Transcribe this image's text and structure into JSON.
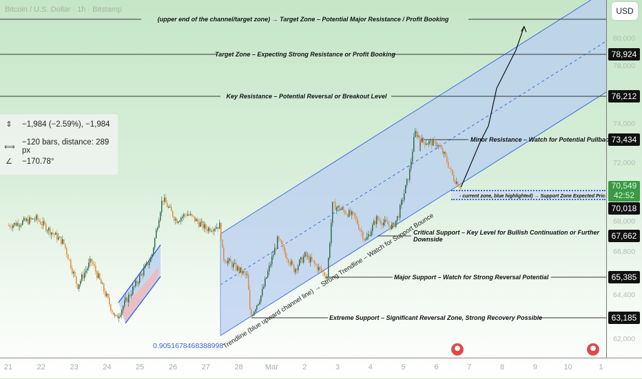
{
  "header": {
    "title": "Bitcoin / U.S. Dollar · 1h · Bitstamp",
    "currency_button": "USD"
  },
  "measure_tool": {
    "price_change": "−1,984 (−2.59%), −1,984",
    "bars_distance": "−120 bars, distance: 289 px",
    "angle": "−170.78°",
    "icons": [
      "price-range-icon",
      "bar-range-icon",
      "angle-icon"
    ]
  },
  "price_axis": {
    "ticks": [
      "80,000",
      "78,000",
      "74,000",
      "72,000",
      "68,000",
      "66,800",
      "64,400",
      "62,000"
    ],
    "labels": {
      "l78924": "78,924",
      "l76212": "76,212",
      "l73434": "73,434",
      "current_price": "70,549",
      "countdown": "42:52",
      "l70018": "70,018",
      "l67662": "67,662",
      "l65385": "65,385",
      "l63185": "63,185"
    }
  },
  "time_axis": [
    "21",
    "22",
    "23",
    "24",
    "25",
    "26",
    "27",
    "28",
    "Mar",
    "2",
    "3",
    "4",
    "5",
    "6",
    "7",
    "8",
    "9",
    "10",
    "1"
  ],
  "annotations": {
    "top": "(upper end of the channel/target zone) → Target Zone – Potential Major Resistance / Profit Booking",
    "target": "Target Zone – Expecting Strong Resistance or Profit Booking",
    "key_resistance": "Key Resistance – Potential Reversal or Breakout Level",
    "minor_resistance": "Minor Resistance – Watch for Potential Pullback",
    "support_zone": "- current zone, blue highlighted) → Support Zone  Expected Price Bounce or",
    "critical_support": "Critical Support – Key Level for Bullish Continuation or Further Downside",
    "major_support": "Major Support – Watch for Strong Reversal Potential",
    "extreme_support": "Extreme Support – Significant Reversal Zone, Strong Recovery Possible",
    "trendline": "Trendline (blue upward channel line) → Strong Trendline – Watch for Support Bounce",
    "fib_value": "0.9051678468388998"
  },
  "colors": {
    "up": "#2f6b4a",
    "down": "#e08a3c",
    "channel": "#3b6fe0",
    "channel_fill": "#b9cff0",
    "background": "#c6e6c8"
  },
  "chart_data": {
    "type": "candlestick",
    "timeframe": "1h",
    "price_path": [
      [
        "Feb 21 00",
        68300
      ],
      [
        "Feb 21 20",
        68700
      ],
      [
        "Feb 22 16",
        67300
      ],
      [
        "Feb 23 02",
        64900
      ],
      [
        "Feb 23 12",
        66300
      ],
      [
        "Feb 24 06",
        63100
      ],
      [
        "Feb 25 08",
        66500
      ],
      [
        "Feb 25 16",
        69900
      ],
      [
        "Feb 26 02",
        68600
      ],
      [
        "Feb 26 10",
        69000
      ],
      [
        "Feb 27 00",
        68100
      ],
      [
        "Feb 27 10",
        68300
      ],
      [
        "Feb 27 12",
        66500
      ],
      [
        "Feb 28 06",
        65400
      ],
      [
        "Feb 28 08",
        63200
      ],
      [
        "Feb 28 16",
        64400
      ],
      [
        "Mar 01 04",
        67500
      ],
      [
        "Mar 01 16",
        65800
      ],
      [
        "Mar 02 00",
        66600
      ],
      [
        "Mar 02 16",
        65400
      ],
      [
        "Mar 02 20",
        69500
      ],
      [
        "Mar 03 12",
        68800
      ],
      [
        "Mar 03 20",
        67400
      ],
      [
        "Mar 04 04",
        68700
      ],
      [
        "Mar 04 16",
        68200
      ],
      [
        "Mar 04 20",
        68900
      ],
      [
        "Mar 05 04",
        71400
      ],
      [
        "Mar 05 08",
        73900
      ],
      [
        "Mar 05 14",
        73300
      ],
      [
        "Mar 06 00",
        73200
      ],
      [
        "Mar 06 06",
        72400
      ],
      [
        "Mar 06 12",
        71100
      ],
      [
        "Mar 06 18",
        70500
      ]
    ],
    "projection": [
      [
        "Mar 06 18",
        70549
      ],
      [
        "Mar 07 08",
        73300
      ],
      [
        "Mar 07 14",
        74300
      ],
      [
        "Mar 07 20",
        76700
      ],
      [
        "Mar 08 10",
        79200
      ],
      [
        "Mar 08 16",
        80800
      ]
    ],
    "levels": [
      78924,
      76212,
      73434,
      70018,
      67662,
      65385,
      63185
    ],
    "scale": "log"
  }
}
